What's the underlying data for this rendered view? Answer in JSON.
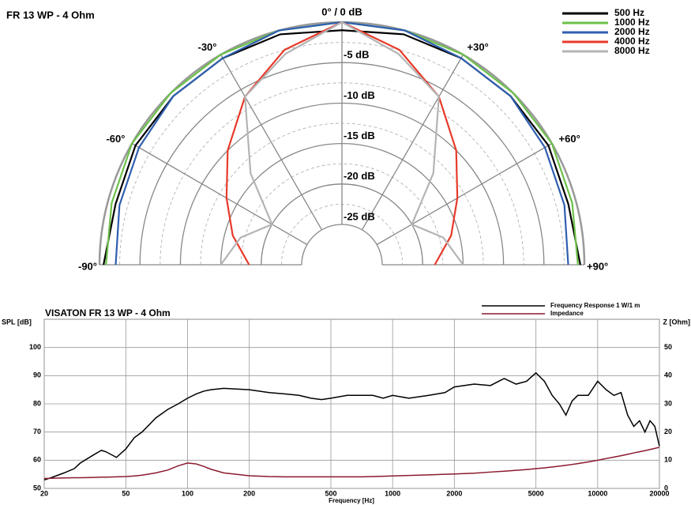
{
  "chart_data": [
    {
      "type": "polar",
      "title": "FR 13 WP - 4 Ohm",
      "x": [
        -90,
        -75,
        -60,
        -45,
        -30,
        -15,
        0,
        15,
        30,
        45,
        60,
        75,
        90
      ],
      "rlim": [
        -25,
        0
      ],
      "rticks": [
        {
          "value": -5,
          "label": "-5 dB"
        },
        {
          "value": -10,
          "label": "-10 dB"
        },
        {
          "value": -15,
          "label": "-15 dB"
        },
        {
          "value": -20,
          "label": "-20 dB"
        },
        {
          "value": -25,
          "label": "-25 dB"
        }
      ],
      "xticks": [
        {
          "value": -90,
          "label": "-90°"
        },
        {
          "value": -60,
          "label": "-60°"
        },
        {
          "value": -30,
          "label": "-30°"
        },
        {
          "value": 0,
          "label": "0° / 0 dB"
        },
        {
          "value": 30,
          "label": "+30°"
        },
        {
          "value": 60,
          "label": "+60°"
        },
        {
          "value": 90,
          "label": "+90°"
        }
      ],
      "legend": "upper right",
      "series": [
        {
          "name": "500 Hz",
          "color": "#000000",
          "values": [
            -0.5,
            -1,
            -0.5,
            -0.5,
            -0.5,
            -0.5,
            -1,
            -0.5,
            -0.5,
            -0.5,
            -0.5,
            -1,
            -0.5
          ]
        },
        {
          "name": "1000 Hz",
          "color": "#6cc04a",
          "values": [
            -0.8,
            -0.5,
            0,
            0,
            0,
            0,
            0,
            0,
            0,
            0,
            0,
            -0.5,
            -0.8
          ]
        },
        {
          "name": "2000 Hz",
          "color": "#2f5fb0",
          "values": [
            -2,
            -1.5,
            -1,
            -0.5,
            -0.5,
            0,
            0,
            0,
            -0.5,
            -0.5,
            -1,
            -1.5,
            -2
          ]
        },
        {
          "name": "4000 Hz",
          "color": "#e83a2a",
          "values": [
            -18.5,
            -16,
            -13.5,
            -10,
            -6,
            -2.5,
            0,
            -2.5,
            -6,
            -10,
            -13.5,
            -16,
            -18.5
          ]
        },
        {
          "name": "8000 Hz",
          "color": "#b4b4b4",
          "values": [
            -15,
            -17,
            -20,
            -14,
            -6,
            -3,
            0,
            -3,
            -6,
            -14,
            -20,
            -17,
            -15
          ]
        }
      ]
    },
    {
      "type": "line",
      "title": "VISATON FR 13 WP - 4 Ohm",
      "xlabel": "Frequency [Hz]",
      "ylabel": "SPL [dB]",
      "y2label": "Z [Ohm]",
      "xscale": "log",
      "grid": true,
      "legend": "upper right",
      "xlim": [
        20,
        20000
      ],
      "xticks": [
        20,
        50,
        100,
        200,
        500,
        1000,
        2000,
        5000,
        10000,
        20000
      ],
      "ylim": [
        50,
        110
      ],
      "yticks": [
        50,
        60,
        70,
        80,
        90,
        100
      ],
      "y2lim": [
        0,
        60
      ],
      "y2ticks": [
        0,
        10,
        20,
        30,
        40,
        50
      ],
      "x": [
        20,
        22,
        25,
        28,
        30,
        35,
        38,
        40,
        45,
        50,
        55,
        60,
        70,
        80,
        90,
        100,
        110,
        120,
        130,
        150,
        200,
        250,
        300,
        350,
        400,
        450,
        500,
        600,
        700,
        800,
        900,
        1000,
        1200,
        1500,
        1800,
        2000,
        2500,
        3000,
        3500,
        4000,
        4500,
        5000,
        5500,
        6000,
        6500,
        7000,
        7500,
        8000,
        9000,
        10000,
        11000,
        12000,
        13000,
        14000,
        15000,
        16000,
        17000,
        18000,
        19000,
        20000
      ],
      "series": [
        {
          "name": "Frequency Response 1 W/1 m",
          "color": "#000000",
          "values": [
            53,
            54,
            55.5,
            57,
            59,
            62,
            63.5,
            63,
            61,
            64,
            68,
            70,
            75,
            78,
            80,
            82,
            83.5,
            84.5,
            85,
            85.5,
            85,
            84,
            83.5,
            83,
            82,
            81.5,
            82,
            83,
            83,
            83,
            82,
            83,
            82,
            83,
            84,
            86,
            87,
            86.5,
            89,
            87,
            88,
            91,
            88,
            83,
            80,
            76,
            81,
            83,
            83,
            88,
            85,
            83,
            84,
            76,
            72,
            74,
            70,
            74,
            72,
            65
          ]
        },
        {
          "name": "Impedance",
          "color": "#8b1a2e",
          "axis": "y2",
          "values": [
            3.5,
            3.6,
            3.7,
            3.8,
            3.8,
            3.9,
            4,
            4,
            4.1,
            4.2,
            4.4,
            4.7,
            5.5,
            6.5,
            8,
            9,
            8.7,
            7.8,
            6.8,
            5.5,
            4.5,
            4.2,
            4.1,
            4.1,
            4.1,
            4.1,
            4.1,
            4.1,
            4.1,
            4.2,
            4.3,
            4.4,
            4.6,
            4.8,
            5,
            5.1,
            5.4,
            5.8,
            6.1,
            6.4,
            6.7,
            7,
            7.3,
            7.6,
            7.9,
            8.2,
            8.5,
            8.8,
            9.4,
            10,
            10.6,
            11.1,
            11.6,
            12.1,
            12.6,
            13,
            13.4,
            13.8,
            14.2,
            14.6
          ]
        }
      ]
    }
  ]
}
